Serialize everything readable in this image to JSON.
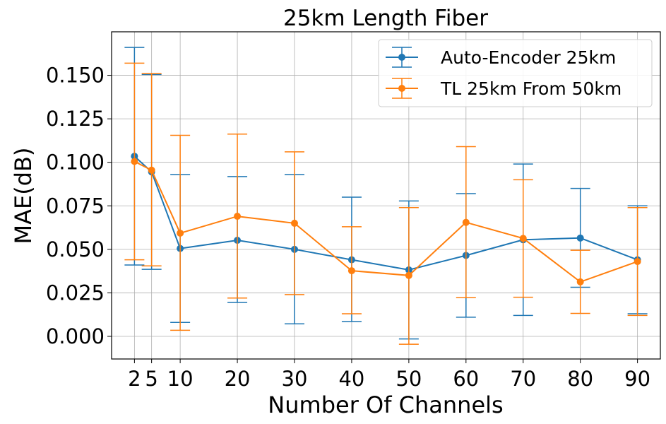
{
  "chart_data": {
    "type": "line",
    "title": "25km Length Fiber",
    "xlabel": "Number Of Channels",
    "ylabel": "MAE(dB)",
    "x": [
      2,
      5,
      10,
      20,
      30,
      40,
      50,
      60,
      70,
      80,
      90
    ],
    "xticks": [
      "2",
      "5",
      "10",
      "20",
      "30",
      "40",
      "50",
      "60",
      "70",
      "80",
      "90"
    ],
    "yticks": [
      "0.000",
      "0.025",
      "0.050",
      "0.075",
      "0.100",
      "0.125",
      "0.150"
    ],
    "ylim": [
      -0.013,
      0.175
    ],
    "xlim": [
      -2,
      94
    ],
    "grid": true,
    "legend_position": "top-right",
    "series": [
      {
        "name": "Auto-Encoder 25km",
        "color": "#1f77b4",
        "values": [
          0.1035,
          0.0945,
          0.0505,
          0.0552,
          0.05,
          0.044,
          0.0382,
          0.0465,
          0.0555,
          0.0565,
          0.044
        ],
        "lower": [
          0.041,
          0.0385,
          0.008,
          0.0195,
          0.0072,
          0.0085,
          -0.0015,
          0.011,
          0.012,
          0.0282,
          0.013
        ],
        "upper": [
          0.166,
          0.1505,
          0.093,
          0.0918,
          0.093,
          0.08,
          0.0778,
          0.082,
          0.099,
          0.085,
          0.075
        ]
      },
      {
        "name": "TL 25km From 50km",
        "color": "#ff7f0e",
        "values": [
          0.1005,
          0.0955,
          0.0593,
          0.069,
          0.065,
          0.0377,
          0.035,
          0.0655,
          0.0563,
          0.0313,
          0.043
        ],
        "lower": [
          0.044,
          0.0405,
          0.0035,
          0.022,
          0.024,
          0.013,
          -0.0045,
          0.0222,
          0.0225,
          0.0132,
          0.012
        ],
        "upper": [
          0.157,
          0.151,
          0.1155,
          0.1162,
          0.106,
          0.063,
          0.074,
          0.109,
          0.09,
          0.0495,
          0.074
        ]
      }
    ]
  }
}
